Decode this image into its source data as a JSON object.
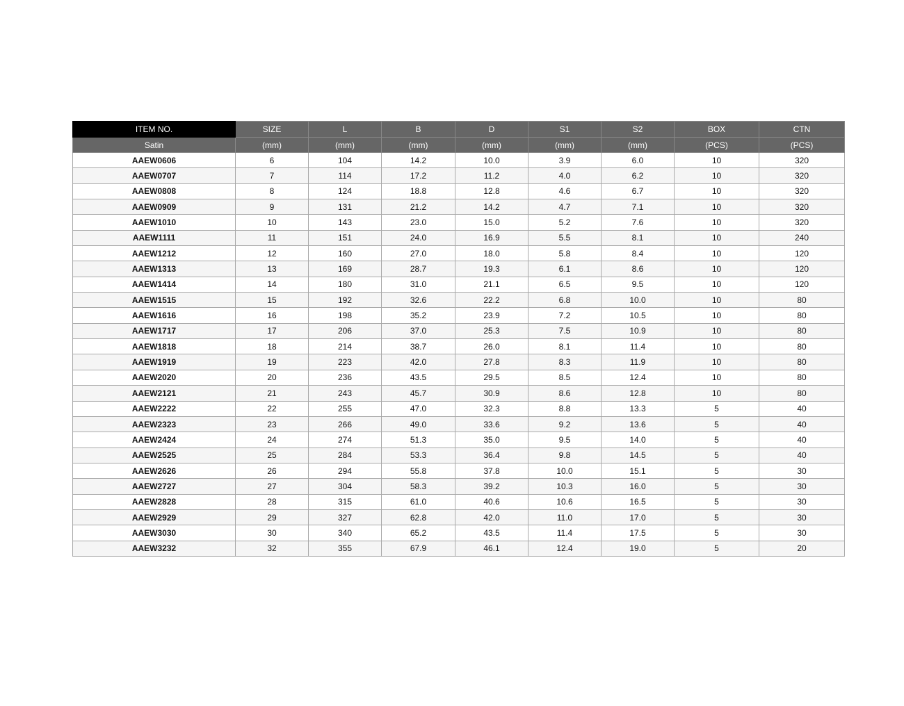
{
  "header": {
    "item_no": "ITEM NO.",
    "finish": "Satin",
    "columns": [
      {
        "label": "SIZE",
        "unit": "(mm)"
      },
      {
        "label": "L",
        "unit": "(mm)"
      },
      {
        "label": "B",
        "unit": "(mm)"
      },
      {
        "label": "D",
        "unit": "(mm)"
      },
      {
        "label": "S1",
        "unit": "(mm)"
      },
      {
        "label": "S2",
        "unit": "(mm)"
      },
      {
        "label": "BOX",
        "unit": "(PCS)"
      },
      {
        "label": "CTN",
        "unit": "(PCS)"
      }
    ]
  },
  "rows": [
    [
      "AAEW0606",
      "6",
      "104",
      "14.2",
      "10.0",
      "3.9",
      "6.0",
      "10",
      "320"
    ],
    [
      "AAEW0707",
      "7",
      "114",
      "17.2",
      "11.2",
      "4.0",
      "6.2",
      "10",
      "320"
    ],
    [
      "AAEW0808",
      "8",
      "124",
      "18.8",
      "12.8",
      "4.6",
      "6.7",
      "10",
      "320"
    ],
    [
      "AAEW0909",
      "9",
      "131",
      "21.2",
      "14.2",
      "4.7",
      "7.1",
      "10",
      "320"
    ],
    [
      "AAEW1010",
      "10",
      "143",
      "23.0",
      "15.0",
      "5.2",
      "7.6",
      "10",
      "320"
    ],
    [
      "AAEW1111",
      "11",
      "151",
      "24.0",
      "16.9",
      "5.5",
      "8.1",
      "10",
      "240"
    ],
    [
      "AAEW1212",
      "12",
      "160",
      "27.0",
      "18.0",
      "5.8",
      "8.4",
      "10",
      "120"
    ],
    [
      "AAEW1313",
      "13",
      "169",
      "28.7",
      "19.3",
      "6.1",
      "8.6",
      "10",
      "120"
    ],
    [
      "AAEW1414",
      "14",
      "180",
      "31.0",
      "21.1",
      "6.5",
      "9.5",
      "10",
      "120"
    ],
    [
      "AAEW1515",
      "15",
      "192",
      "32.6",
      "22.2",
      "6.8",
      "10.0",
      "10",
      "80"
    ],
    [
      "AAEW1616",
      "16",
      "198",
      "35.2",
      "23.9",
      "7.2",
      "10.5",
      "10",
      "80"
    ],
    [
      "AAEW1717",
      "17",
      "206",
      "37.0",
      "25.3",
      "7.5",
      "10.9",
      "10",
      "80"
    ],
    [
      "AAEW1818",
      "18",
      "214",
      "38.7",
      "26.0",
      "8.1",
      "11.4",
      "10",
      "80"
    ],
    [
      "AAEW1919",
      "19",
      "223",
      "42.0",
      "27.8",
      "8.3",
      "11.9",
      "10",
      "80"
    ],
    [
      "AAEW2020",
      "20",
      "236",
      "43.5",
      "29.5",
      "8.5",
      "12.4",
      "10",
      "80"
    ],
    [
      "AAEW2121",
      "21",
      "243",
      "45.7",
      "30.9",
      "8.6",
      "12.8",
      "10",
      "80"
    ],
    [
      "AAEW2222",
      "22",
      "255",
      "47.0",
      "32.3",
      "8.8",
      "13.3",
      "5",
      "40"
    ],
    [
      "AAEW2323",
      "23",
      "266",
      "49.0",
      "33.6",
      "9.2",
      "13.6",
      "5",
      "40"
    ],
    [
      "AAEW2424",
      "24",
      "274",
      "51.3",
      "35.0",
      "9.5",
      "14.0",
      "5",
      "40"
    ],
    [
      "AAEW2525",
      "25",
      "284",
      "53.3",
      "36.4",
      "9.8",
      "14.5",
      "5",
      "40"
    ],
    [
      "AAEW2626",
      "26",
      "294",
      "55.8",
      "37.8",
      "10.0",
      "15.1",
      "5",
      "30"
    ],
    [
      "AAEW2727",
      "27",
      "304",
      "58.3",
      "39.2",
      "10.3",
      "16.0",
      "5",
      "30"
    ],
    [
      "AAEW2828",
      "28",
      "315",
      "61.0",
      "40.6",
      "10.6",
      "16.5",
      "5",
      "30"
    ],
    [
      "AAEW2929",
      "29",
      "327",
      "62.8",
      "42.0",
      "11.0",
      "17.0",
      "5",
      "30"
    ],
    [
      "AAEW3030",
      "30",
      "340",
      "65.2",
      "43.5",
      "11.4",
      "17.5",
      "5",
      "30"
    ],
    [
      "AAEW3232",
      "32",
      "355",
      "67.9",
      "46.1",
      "12.4",
      "19.0",
      "5",
      "20"
    ]
  ]
}
